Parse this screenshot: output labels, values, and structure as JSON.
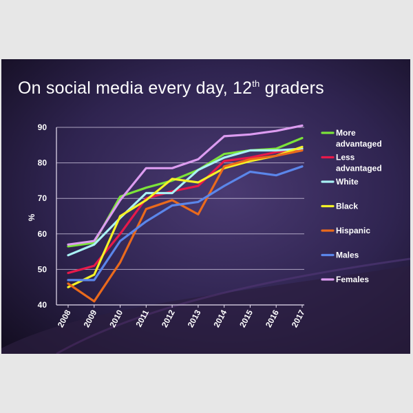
{
  "slide": {
    "title_main": "On social media every day, 12",
    "title_sup": "th",
    "title_end": " graders"
  },
  "chart_data": {
    "type": "line",
    "title": "On social media every day, 12th graders",
    "xlabel": "",
    "ylabel": "%",
    "ylim": [
      40,
      90
    ],
    "yticks": [
      40,
      50,
      60,
      70,
      80,
      90
    ],
    "x": [
      "2008",
      "2009",
      "2010",
      "2011",
      "2012",
      "2013",
      "2014",
      "2015",
      "2016",
      "2017"
    ],
    "grid": true,
    "legend_placement": "right",
    "series": [
      {
        "name": "More advantaged",
        "label_lines": [
          "More",
          "advantaged"
        ],
        "color": "#7ce33a",
        "values": [
          56.5,
          57.5,
          70.5,
          73,
          75,
          78,
          82.5,
          83.5,
          84,
          87
        ]
      },
      {
        "name": "Less advantaged",
        "label_lines": [
          "Less",
          "advantaged"
        ],
        "color": "#e8194a",
        "values": [
          49,
          51,
          60,
          70,
          72,
          73.5,
          80.5,
          81.5,
          83,
          84
        ]
      },
      {
        "name": "White",
        "label_lines": [
          "White"
        ],
        "color": "#a9f2f5",
        "values": [
          54,
          57,
          64.5,
          71.5,
          71.5,
          78,
          81.5,
          83.5,
          83.5,
          84
        ]
      },
      {
        "name": "Black",
        "label_lines": [
          "Black"
        ],
        "color": "#f4f227",
        "values": [
          45,
          48.5,
          65,
          69.5,
          75.5,
          74.5,
          78.5,
          80.5,
          82,
          84.5
        ]
      },
      {
        "name": "Hispanic",
        "label_lines": [
          "Hispanic"
        ],
        "color": "#ea6a1c",
        "values": [
          46,
          41,
          52,
          67,
          69.5,
          65.5,
          79,
          81,
          82,
          83.5
        ]
      },
      {
        "name": "Males",
        "label_lines": [
          "Males"
        ],
        "color": "#5b86ea",
        "values": [
          47,
          47,
          58,
          63.5,
          68,
          69,
          73.5,
          77.5,
          76.5,
          79
        ]
      },
      {
        "name": "Females",
        "label_lines": [
          "Females"
        ],
        "color": "#dc9cf0",
        "values": [
          57,
          58,
          69.5,
          78.5,
          78.5,
          81,
          87.5,
          88,
          89,
          90.5
        ]
      }
    ]
  }
}
